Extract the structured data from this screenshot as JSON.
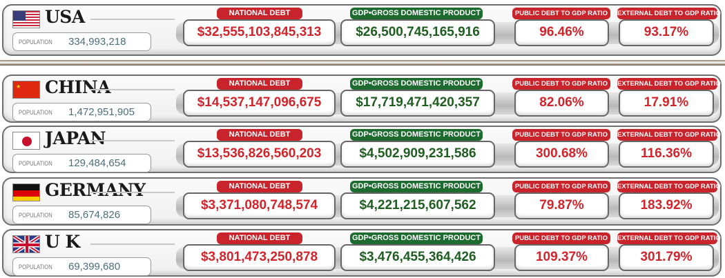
{
  "labels": {
    "population": "POPULATION",
    "national_debt": "NATIONAL DEBT",
    "gdp": "GDP•GROSS DOMESTIC PRODUCT",
    "public_ratio": "PUBLIC DEBT TO GDP RATIO",
    "external_ratio": "EXTERNAL DEBT TO GDP RATIO"
  },
  "colors": {
    "debt": "#d3242b",
    "gdp": "#1f5e20",
    "tag_red": "#c9232b",
    "tag_green": "#1e6b30"
  },
  "countries": [
    {
      "name": "USA",
      "flag": "us-flag",
      "population": "334,993,218",
      "national_debt": "$32,555,103,845,313",
      "gdp": "$26,500,745,165,916",
      "public_ratio": "96.46%",
      "external_ratio": "93.17%"
    },
    {
      "name": "CHINA",
      "flag": "china-flag",
      "population": "1,472,951,905",
      "national_debt": "$14,537,147,096,675",
      "gdp": "$17,719,471,420,357",
      "public_ratio": "82.06%",
      "external_ratio": "17.91%"
    },
    {
      "name": "JAPAN",
      "flag": "japan-flag",
      "population": "129,484,654",
      "national_debt": "$13,536,826,560,203",
      "gdp": "$4,502,909,231,586",
      "public_ratio": "300.68%",
      "external_ratio": "116.36%"
    },
    {
      "name": "GERMANY",
      "flag": "germany-flag",
      "population": "85,674,826",
      "national_debt": "$3,371,080,748,574",
      "gdp": "$4,221,215,607,562",
      "public_ratio": "79.87%",
      "external_ratio": "183.92%"
    },
    {
      "name": "U K",
      "flag": "uk-flag",
      "population": "69,399,680",
      "national_debt": "$3,801,473,250,878",
      "gdp": "$3,476,455,364,426",
      "public_ratio": "109.37%",
      "external_ratio": "301.79%"
    }
  ]
}
